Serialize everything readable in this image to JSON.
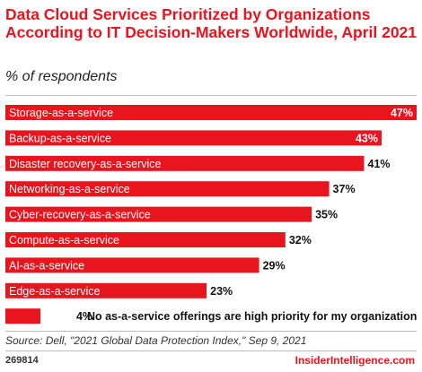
{
  "header": {
    "title": "Data Cloud Services Prioritized by Organizations According to IT Decision-Makers Worldwide, April 2021",
    "subtitle": "% of respondents"
  },
  "footer": {
    "source": "Source: Dell, \"2021 Global Data Protection Index,\" Sep 9, 2021",
    "chart_id": "269814",
    "brand": "InsiderIntelligence.com"
  },
  "colors": {
    "bar": "#e8141e",
    "title": "#e8141e",
    "rule": "#bdbdbd"
  },
  "chart_data": {
    "type": "bar",
    "orientation": "horizontal",
    "title": "Data Cloud Services Prioritized by Organizations According to IT Decision-Makers Worldwide, April 2021",
    "subtitle": "% of respondents",
    "categories": [
      "Storage-as-a-service",
      "Backup-as-a-service",
      "Disaster recovery-as-a-service",
      "Networking-as-a-service",
      "Cyber-recovery-as-a-service",
      "Compute-as-a-service",
      "AI-as-a-service",
      "Edge-as-a-service",
      "No as-a-service offerings are high priority for my organization"
    ],
    "values": [
      47,
      43,
      41,
      37,
      35,
      32,
      29,
      23,
      4
    ],
    "value_labels": [
      "47%",
      "43%",
      "41%",
      "37%",
      "35%",
      "32%",
      "29%",
      "23%",
      "4%"
    ],
    "xlim": [
      0,
      47
    ],
    "grid": false,
    "legend": "none"
  }
}
